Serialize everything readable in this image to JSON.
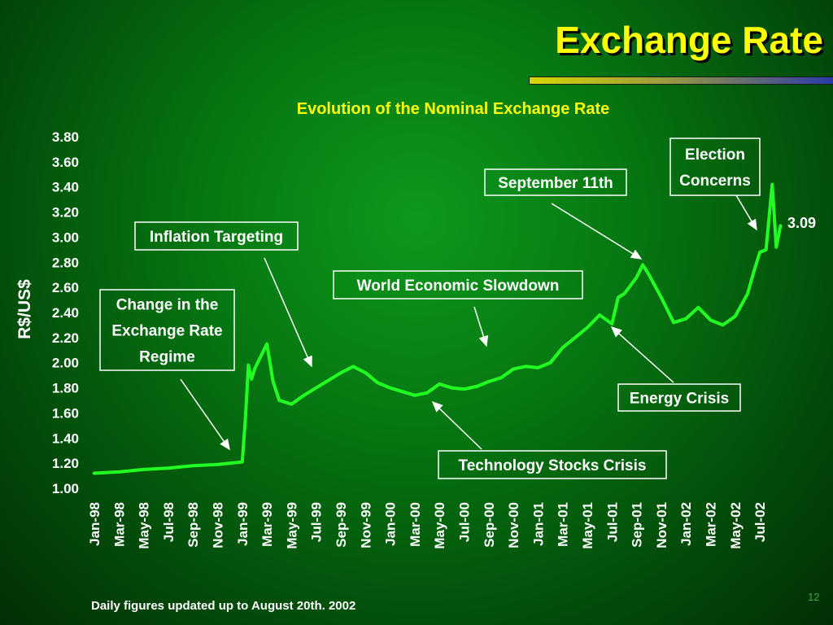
{
  "slide": {
    "title": "Exchange Rate",
    "footnote": "Daily figures updated up to August 20th. 2002",
    "page_number": "12"
  },
  "colors": {
    "title": "#ffff00",
    "line": "#22ff22",
    "text": "#ffffff",
    "subtitle": "#ffff00"
  },
  "chart_data": {
    "type": "line",
    "title": "Evolution of the Nominal Exchange Rate",
    "ylabel": "R$/US$",
    "xlabel": "",
    "ylim": [
      1.0,
      3.8
    ],
    "yticks": [
      "3.80",
      "3.60",
      "3.40",
      "3.20",
      "3.00",
      "2.80",
      "2.60",
      "2.40",
      "2.20",
      "2.00",
      "1.80",
      "1.60",
      "1.40",
      "1.20",
      "1.00"
    ],
    "xticks": [
      "Jan-98",
      "Mar-98",
      "May-98",
      "Jul-98",
      "Sep-98",
      "Nov-98",
      "Jan-99",
      "Mar-99",
      "May-99",
      "Jul-99",
      "Sep-99",
      "Nov-99",
      "Jan-00",
      "Mar-00",
      "May-00",
      "Jul-00",
      "Sep-00",
      "Nov-00",
      "Jan-01",
      "Mar-01",
      "May-01",
      "Jul-01",
      "Sep-01",
      "Nov-01",
      "Jan-02",
      "Mar-02",
      "May-02",
      "Jul-02"
    ],
    "grid": false,
    "series": [
      {
        "x": [
          "Jan-98",
          "Mar-98",
          "May-98",
          "Jul-98",
          "Sep-98",
          "Nov-98",
          "Jan-99",
          "Jan-99",
          "Jan-99",
          "Jan-99",
          "Feb-99",
          "Mar-99",
          "Mar-99",
          "Apr-99",
          "May-99",
          "Jun-99",
          "Jul-99",
          "Aug-99",
          "Sep-99",
          "Oct-99",
          "Nov-99",
          "Dec-99",
          "Jan-00",
          "Feb-00",
          "Mar-00",
          "Apr-00",
          "May-00",
          "Jun-00",
          "Jul-00",
          "Aug-00",
          "Sep-00",
          "Oct-00",
          "Nov-00",
          "Dec-00",
          "Jan-01",
          "Feb-01",
          "Mar-01",
          "Apr-01",
          "May-01",
          "Jun-01",
          "Jul-01",
          "Jul-01",
          "Aug-01",
          "Sep-01",
          "Sep-01",
          "Oct-01",
          "Nov-01",
          "Dec-01",
          "Jan-02",
          "Feb-02",
          "Mar-02",
          "Apr-02",
          "May-02",
          "Jun-02",
          "Jun-02",
          "Jul-02",
          "Jul-02",
          "Aug-02",
          "Aug-02",
          "Aug-02"
        ],
        "values": [
          1.12,
          1.13,
          1.15,
          1.16,
          1.18,
          1.19,
          1.21,
          1.55,
          1.98,
          1.87,
          1.95,
          2.15,
          1.85,
          1.7,
          1.67,
          1.74,
          1.8,
          1.86,
          1.92,
          1.97,
          1.92,
          1.84,
          1.8,
          1.77,
          1.74,
          1.76,
          1.83,
          1.8,
          1.79,
          1.81,
          1.85,
          1.88,
          1.95,
          1.97,
          1.96,
          2.0,
          2.12,
          2.2,
          2.28,
          2.38,
          2.31,
          2.52,
          2.55,
          2.68,
          2.78,
          2.7,
          2.52,
          2.32,
          2.35,
          2.44,
          2.34,
          2.3,
          2.37,
          2.55,
          2.72,
          2.88,
          2.9,
          3.42,
          2.92,
          3.09
        ]
      }
    ],
    "end_label": "3.09",
    "annotations": [
      "Change in the Exchange Rate Regime",
      "Inflation Targeting",
      "World Economic Slowdown",
      "September 11th",
      "Election Concerns",
      "Energy Crisis",
      "Technology Stocks Crisis"
    ],
    "annotation_lines": [
      [
        "Change in the",
        "Exchange Rate",
        "Regime"
      ],
      [
        "Inflation Targeting"
      ],
      [
        "World Economic Slowdown"
      ],
      [
        "September 11th"
      ],
      [
        "Election",
        "Concerns"
      ],
      [
        "Energy Crisis"
      ],
      [
        "Technology Stocks Crisis"
      ]
    ]
  }
}
